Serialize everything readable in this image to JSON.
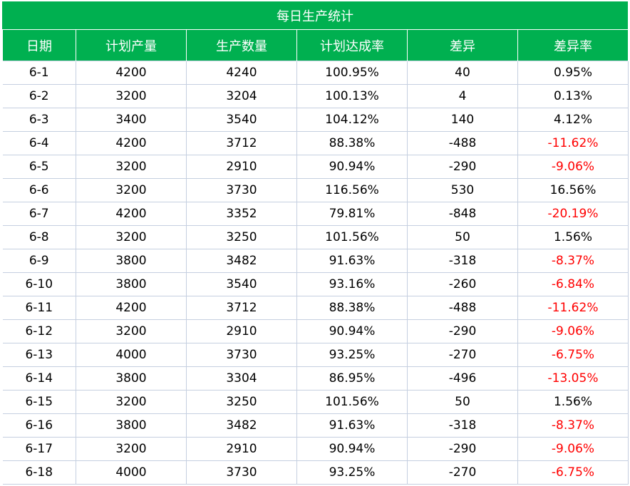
{
  "title": "每日生产统计",
  "headers": [
    "日期",
    "计划产量",
    "生产数量",
    "计划达成率",
    "差异",
    "差异率"
  ],
  "colors": {
    "header_bg": "#00b050",
    "header_text": "#ffffff",
    "negative": "#ff0000",
    "grid_line": "#c5cfe0"
  },
  "rows": [
    [
      "6-1",
      "4200",
      "4240",
      "100.95%",
      "40",
      "0.95%"
    ],
    [
      "6-2",
      "3200",
      "3204",
      "100.13%",
      "4",
      "0.13%"
    ],
    [
      "6-3",
      "3400",
      "3540",
      "104.12%",
      "140",
      "4.12%"
    ],
    [
      "6-4",
      "4200",
      "3712",
      "88.38%",
      "-488",
      "-11.62%"
    ],
    [
      "6-5",
      "3200",
      "2910",
      "90.94%",
      "-290",
      "-9.06%"
    ],
    [
      "6-6",
      "3200",
      "3730",
      "116.56%",
      "530",
      "16.56%"
    ],
    [
      "6-7",
      "4200",
      "3352",
      "79.81%",
      "-848",
      "-20.19%"
    ],
    [
      "6-8",
      "3200",
      "3250",
      "101.56%",
      "50",
      "1.56%"
    ],
    [
      "6-9",
      "3800",
      "3482",
      "91.63%",
      "-318",
      "-8.37%"
    ],
    [
      "6-10",
      "3800",
      "3540",
      "93.16%",
      "-260",
      "-6.84%"
    ],
    [
      "6-11",
      "4200",
      "3712",
      "88.38%",
      "-488",
      "-11.62%"
    ],
    [
      "6-12",
      "3200",
      "2910",
      "90.94%",
      "-290",
      "-9.06%"
    ],
    [
      "6-13",
      "4000",
      "3730",
      "93.25%",
      "-270",
      "-6.75%"
    ],
    [
      "6-14",
      "3800",
      "3304",
      "86.95%",
      "-496",
      "-13.05%"
    ],
    [
      "6-15",
      "3200",
      "3250",
      "101.56%",
      "50",
      "1.56%"
    ],
    [
      "6-16",
      "3800",
      "3482",
      "91.63%",
      "-318",
      "-8.37%"
    ],
    [
      "6-17",
      "3200",
      "2910",
      "90.94%",
      "-290",
      "-9.06%"
    ],
    [
      "6-18",
      "4000",
      "3730",
      "93.25%",
      "-270",
      "-6.75%"
    ]
  ]
}
